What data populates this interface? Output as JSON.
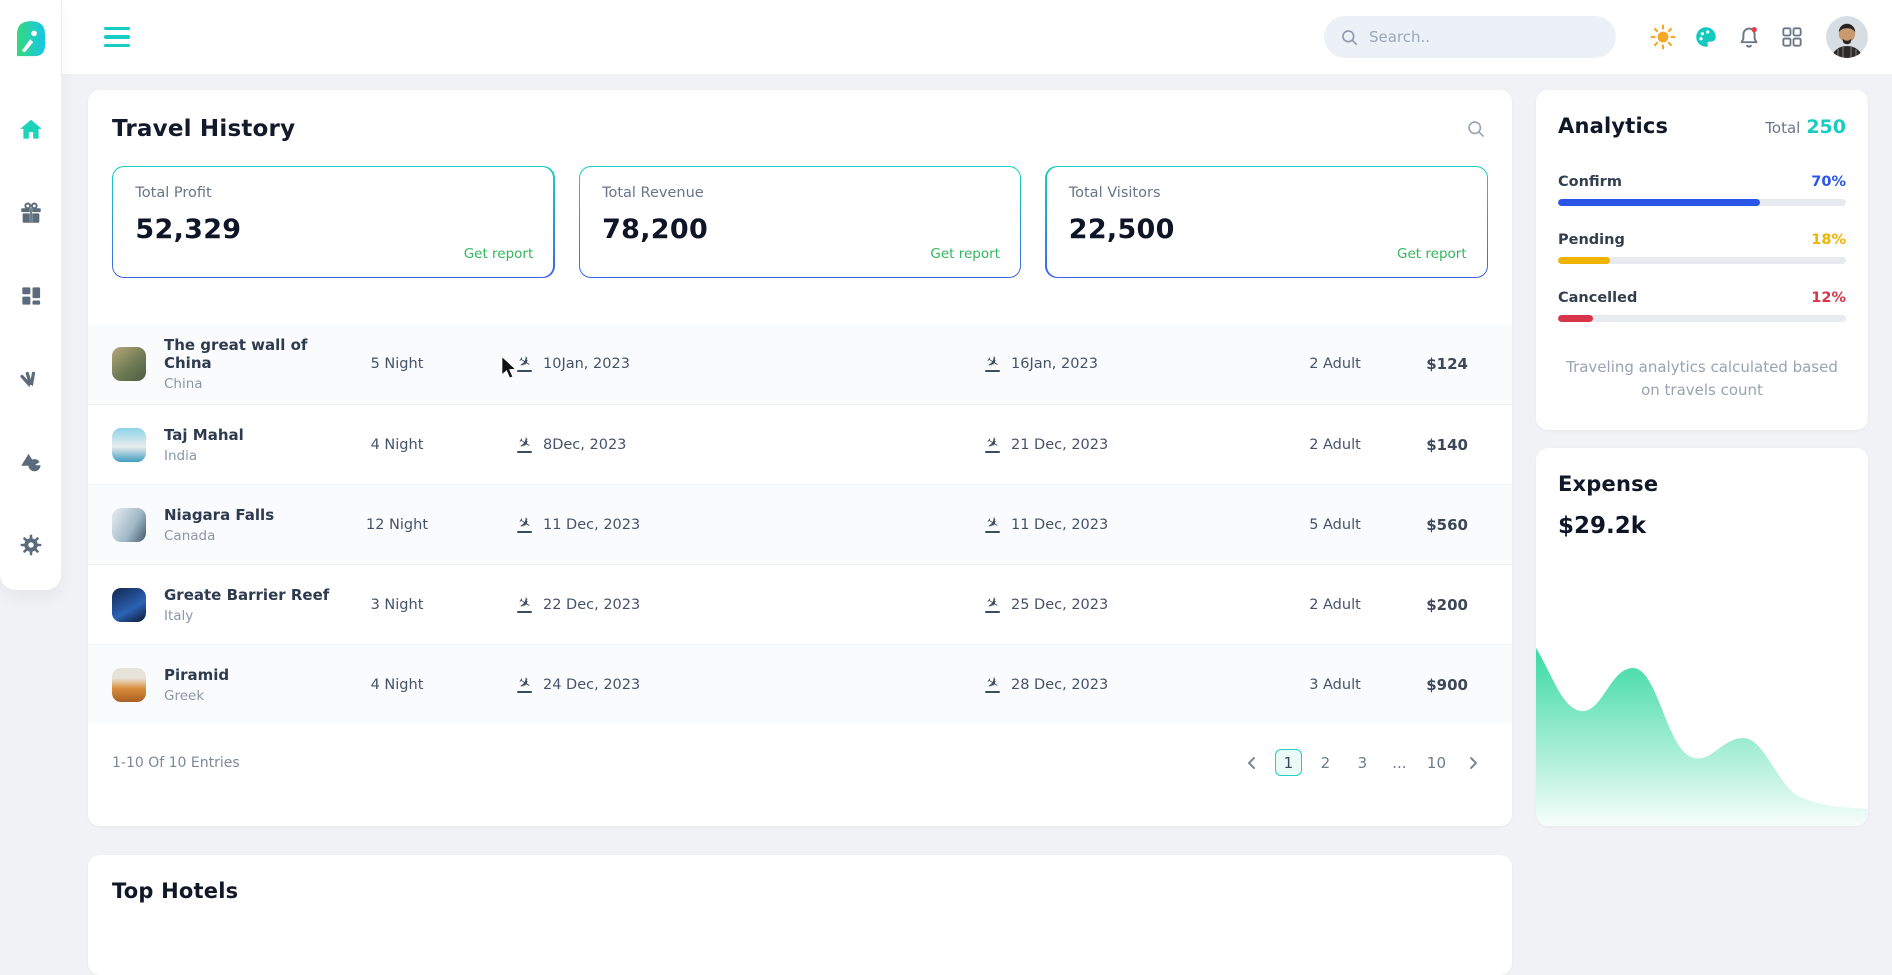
{
  "topbar": {
    "search_placeholder": "Search..",
    "icons": [
      "theme-sun",
      "palette",
      "notifications",
      "apps-grid",
      "avatar"
    ]
  },
  "sidebar": {
    "icons": [
      "logo",
      "home",
      "gifts",
      "dashboard",
      "swatches",
      "shapes",
      "settings"
    ],
    "active": "home"
  },
  "travel_history": {
    "title": "Travel History",
    "stats": [
      {
        "label": "Total Profit",
        "value": "52,329",
        "action": "Get report"
      },
      {
        "label": "Total Revenue",
        "value": "78,200",
        "action": "Get report"
      },
      {
        "label": "Total Visitors",
        "value": "22,500",
        "action": "Get report"
      }
    ],
    "rows": [
      {
        "name": "The great wall of China",
        "country": "China",
        "nights": "5 Night",
        "depart": "10Jan, 2023",
        "arrive": "16Jan, 2023",
        "adults": "2 Adult",
        "price": "$124"
      },
      {
        "name": "Taj Mahal",
        "country": "India",
        "nights": "4 Night",
        "depart": "8Dec, 2023",
        "arrive": "21 Dec, 2023",
        "adults": "2 Adult",
        "price": "$140"
      },
      {
        "name": "Niagara Falls",
        "country": "Canada",
        "nights": "12 Night",
        "depart": "11 Dec, 2023",
        "arrive": "11 Dec, 2023",
        "adults": "5 Adult",
        "price": "$560"
      },
      {
        "name": "Greate Barrier Reef",
        "country": "Italy",
        "nights": "3 Night",
        "depart": "22 Dec, 2023",
        "arrive": "25 Dec, 2023",
        "adults": "2 Adult",
        "price": "$200"
      },
      {
        "name": "Piramid",
        "country": "Greek",
        "nights": "4 Night",
        "depart": "24 Dec, 2023",
        "arrive": "28 Dec, 2023",
        "adults": "3 Adult",
        "price": "$900"
      }
    ],
    "footer": {
      "entries": "1-10 Of 10 Entries",
      "pages": [
        "1",
        "2",
        "3",
        "...",
        "10"
      ],
      "active_page": "1"
    }
  },
  "analytics": {
    "title": "Analytics",
    "total_label": "Total",
    "total_value": "250",
    "bars": [
      {
        "label": "Confirm",
        "percent": 70,
        "percent_label": "70%",
        "color": "#2b55e6"
      },
      {
        "label": "Pending",
        "percent": 18,
        "percent_label": "18%",
        "color": "#f0b400"
      },
      {
        "label": "Cancelled",
        "percent": 12,
        "percent_label": "12%",
        "color": "#d8354a"
      }
    ],
    "caption": "Traveling analytics calculated based on travels count"
  },
  "expense": {
    "title": "Expense",
    "value": "$29.2k",
    "chart": {
      "type": "area",
      "color": "#2fd79e",
      "values": [
        62,
        48,
        41,
        55,
        24,
        18,
        30,
        31,
        16,
        9,
        6,
        5
      ]
    }
  },
  "top_hotels": {
    "title": "Top Hotels"
  },
  "colors": {
    "accent_teal": "#1dd3b9",
    "report_green": "#35b45f",
    "confirm_blue": "#2b55e6",
    "pending_amber": "#f0b400",
    "cancelled_red": "#d8354a",
    "total_teal": "#17ccc0"
  }
}
